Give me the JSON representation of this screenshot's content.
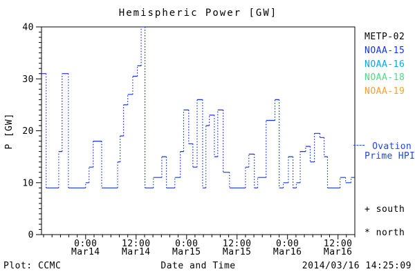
{
  "header": {
    "plot_source": "Plot: CCMC"
  },
  "legend": {
    "satellites": [
      {
        "label": "METP-02",
        "color": "#000000"
      },
      {
        "label": "NOAA-15",
        "color": "#1433ef"
      },
      {
        "label": "NOAA-16",
        "color": "#00a6f2"
      },
      {
        "label": "NOAA-18",
        "color": "#4fd987"
      },
      {
        "label": "NOAA-19",
        "color": "#f7a12b"
      }
    ],
    "ovation": {
      "line1": "Ovation",
      "line2": "Prime HPI",
      "color": "#2244ee"
    },
    "markers": [
      {
        "symbol": "+",
        "label": "south"
      },
      {
        "symbol": "*",
        "label": "north"
      }
    ]
  },
  "footer": {
    "left": "Plot: CCMC",
    "right": "2014/03/16 14:25:09"
  },
  "chart_data": {
    "type": "line",
    "subtype": "step-stairs-with-dotted-risers",
    "title": "Hemispheric Power [GW]",
    "xlabel": "Date and Time",
    "ylabel": "P [GW]",
    "ylim": [
      0,
      40
    ],
    "y_major_ticks": [
      0,
      10,
      20,
      30,
      40
    ],
    "y_minor_step": 1,
    "x_domain_hours": [
      -10.5,
      64
    ],
    "x_minor_step_hours": 2,
    "x_ticks": [
      {
        "hours": 0,
        "time": "0:00",
        "date": "Mar14"
      },
      {
        "hours": 12,
        "time": "12:00",
        "date": "Mar14"
      },
      {
        "hours": 24,
        "time": "0:00",
        "date": "Mar15"
      },
      {
        "hours": 36,
        "time": "12:00",
        "date": "Mar15"
      },
      {
        "hours": 48,
        "time": "0:00",
        "date": "Mar16"
      },
      {
        "hours": 60,
        "time": "12:00",
        "date": "Mar16"
      }
    ],
    "grid": false,
    "legend_position": "right-outside",
    "series": [
      {
        "name": "NOAA-15 Hemispheric Power",
        "color": "#1433ef",
        "units": "GW",
        "segments_hours_start_end_value": [
          [
            -10.5,
            -9.4,
            31
          ],
          [
            -9.4,
            -6.4,
            9
          ],
          [
            -6.4,
            -5.6,
            16
          ],
          [
            -5.6,
            -4.1,
            31
          ],
          [
            -4.1,
            0,
            9
          ],
          [
            0,
            0.8,
            10
          ],
          [
            0.8,
            1.8,
            13
          ],
          [
            1.8,
            3.8,
            18
          ],
          [
            3.8,
            7.6,
            9
          ],
          [
            7.6,
            8.2,
            14
          ],
          [
            8.2,
            9,
            19
          ],
          [
            9,
            10,
            25
          ],
          [
            10,
            11.2,
            27
          ],
          [
            11.2,
            12.3,
            30.5
          ],
          [
            12.3,
            13.2,
            32.5
          ],
          [
            13.2,
            14.1,
            40
          ],
          [
            14.1,
            16.1,
            9
          ],
          [
            16.1,
            18.1,
            11
          ],
          [
            18.1,
            19.2,
            15
          ],
          [
            19.2,
            21.2,
            9
          ],
          [
            21.2,
            22.5,
            11
          ],
          [
            22.5,
            23.3,
            16
          ],
          [
            23.3,
            24.5,
            24
          ],
          [
            24.5,
            25.5,
            17.5
          ],
          [
            25.5,
            26.5,
            13
          ],
          [
            26.5,
            27.8,
            26
          ],
          [
            27.8,
            28.6,
            9
          ],
          [
            28.6,
            29.4,
            21
          ],
          [
            29.4,
            30.6,
            23
          ],
          [
            30.6,
            31.4,
            15
          ],
          [
            31.4,
            32.7,
            24
          ],
          [
            32.7,
            34.2,
            12
          ],
          [
            34.2,
            38,
            9
          ],
          [
            38,
            38.8,
            13
          ],
          [
            38.8,
            40.1,
            15.5
          ],
          [
            40.1,
            40.9,
            9
          ],
          [
            40.9,
            42.9,
            11
          ],
          [
            42.9,
            45,
            22
          ],
          [
            45,
            46,
            26
          ],
          [
            46,
            47,
            9
          ],
          [
            47,
            48.2,
            10
          ],
          [
            48.2,
            49.3,
            15
          ],
          [
            49.3,
            50.1,
            9
          ],
          [
            50.1,
            51,
            10
          ],
          [
            51,
            52.3,
            16
          ],
          [
            52.3,
            53.4,
            17
          ],
          [
            53.4,
            54.4,
            14
          ],
          [
            54.4,
            55.7,
            19.5
          ],
          [
            55.7,
            56.7,
            18.7
          ],
          [
            56.7,
            57.5,
            15
          ],
          [
            57.5,
            60.5,
            9
          ],
          [
            60.5,
            61.8,
            11
          ],
          [
            61.8,
            63.1,
            10
          ],
          [
            63.1,
            63.9,
            11
          ]
        ]
      }
    ]
  }
}
